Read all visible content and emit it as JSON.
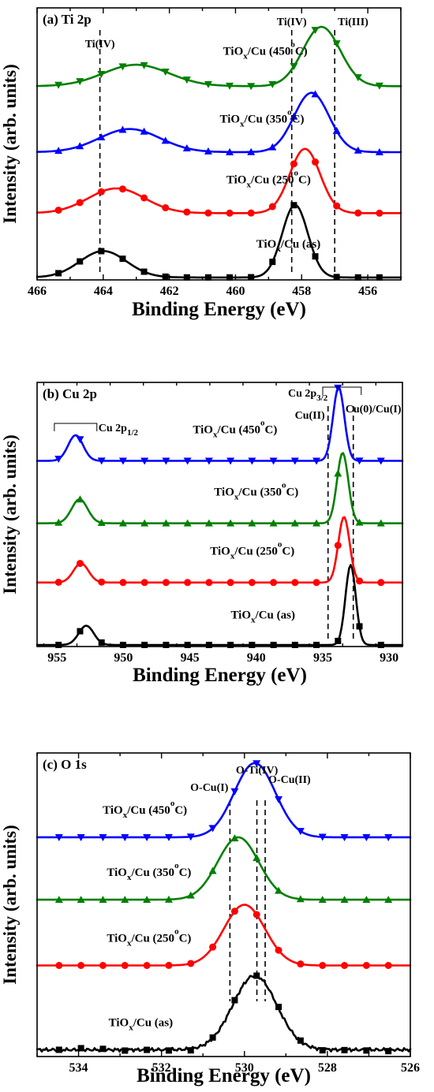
{
  "chart_data": [
    {
      "type": "line",
      "panel_label": "(a) Ti 2p",
      "xlabel": "Binding Energy (eV)",
      "ylabel": "Intensity (arb. units)",
      "xlim": [
        466,
        455
      ],
      "x_reversed": true,
      "xticks": [
        466,
        464,
        462,
        460,
        458,
        456
      ],
      "y_ticks_labeled": false,
      "series": [
        {
          "label": "TiO<sub>x</sub>/Cu (as)",
          "label_parts": [
            "TiO",
            "x",
            "/Cu (as)"
          ],
          "color": "#000000",
          "marker": "square",
          "offset": 0.0,
          "baseline": 0.03,
          "peaks": [
            [
              458.2,
              0.88,
              0.55
            ],
            [
              464.0,
              0.32,
              1.0
            ]
          ],
          "bg_slope": 0.0
        },
        {
          "label_parts": [
            "TiO",
            "x",
            "/Cu (250",
            "o",
            "C)"
          ],
          "color": "#ff0000",
          "marker": "circle",
          "offset": 0.78,
          "baseline": 0.03,
          "peaks": [
            [
              457.9,
              0.78,
              0.65
            ],
            [
              463.6,
              0.3,
              1.2
            ]
          ],
          "bg_slope": 0.0
        },
        {
          "label_parts": [
            "TiO",
            "x",
            "/Cu (350",
            "o",
            "C)"
          ],
          "color": "#0000ff",
          "marker": "triangle-up",
          "offset": 1.52,
          "baseline": 0.03,
          "peaks": [
            [
              457.7,
              0.72,
              0.75
            ],
            [
              463.2,
              0.28,
              1.3
            ]
          ],
          "bg_slope": 0.0
        },
        {
          "label_parts": [
            "TiO",
            "x",
            "/Cu (450",
            "o",
            "C)"
          ],
          "color": "#008000",
          "marker": "triangle-down",
          "offset": 2.32,
          "baseline": 0.03,
          "peaks": [
            [
              457.4,
              0.72,
              0.8
            ],
            [
              463.0,
              0.26,
              1.4
            ]
          ],
          "bg_slope": 0.0
        }
      ],
      "reference_lines": [
        {
          "x": 464.1,
          "label": "Ti(IV)"
        },
        {
          "x": 458.3,
          "label": "Ti(IV)"
        },
        {
          "x": 457.0,
          "label": "Ti(III)"
        }
      ]
    },
    {
      "type": "line",
      "panel_label": "(b) Cu 2p",
      "xlabel": "Binding Energy (eV)",
      "ylabel": "Intensity (arb. units)",
      "xlim": [
        956.5,
        929
      ],
      "x_reversed": true,
      "xticks": [
        955,
        950,
        945,
        940,
        935,
        930
      ],
      "y_ticks_labeled": false,
      "series": [
        {
          "label_parts": [
            "TiO",
            "x",
            "/Cu (as)"
          ],
          "color": "#000000",
          "marker": "square",
          "offset": 0.0,
          "baseline": 0.02,
          "peaks": [
            [
              932.9,
              1.0,
              0.55
            ],
            [
              952.8,
              0.24,
              0.8
            ]
          ],
          "bg_slope": 0.0
        },
        {
          "label_parts": [
            "TiO",
            "x",
            "/Cu (250",
            "o",
            "C)"
          ],
          "color": "#ff0000",
          "marker": "circle",
          "offset": 0.78,
          "baseline": 0.02,
          "peaks": [
            [
              933.4,
              0.82,
              0.6
            ],
            [
              953.2,
              0.24,
              0.8
            ]
          ],
          "bg_slope": 0.0
        },
        {
          "label_parts": [
            "TiO",
            "x",
            "/Cu (350",
            "o",
            "C)"
          ],
          "color": "#008000",
          "marker": "triangle-up",
          "offset": 1.52,
          "baseline": 0.02,
          "peaks": [
            [
              933.5,
              0.88,
              0.6
            ],
            [
              953.3,
              0.3,
              0.85
            ]
          ],
          "bg_slope": 0.0
        },
        {
          "label_parts": [
            "TiO",
            "x",
            "/Cu (450",
            "o",
            "C)"
          ],
          "color": "#0000ff",
          "marker": "triangle-down",
          "offset": 2.3,
          "baseline": 0.02,
          "peaks": [
            [
              933.8,
              0.92,
              0.6
            ],
            [
              953.6,
              0.32,
              0.8
            ]
          ],
          "bg_slope": 0.0
        }
      ],
      "reference_lines": [
        {
          "x": 934.6,
          "label": "Cu(II)"
        },
        {
          "x": 932.7,
          "label": "Cu(0)/Cu(I)"
        }
      ],
      "peak_groups": [
        {
          "label_parts": [
            "Cu 2p",
            "1/2"
          ],
          "x_from": 955.2,
          "x_to": 952.0
        },
        {
          "label_parts": [
            "Cu 2p",
            "3/2"
          ],
          "x_from": 935.0,
          "x_to": 932.1
        }
      ]
    },
    {
      "type": "line",
      "panel_label": "(c) O 1s",
      "xlabel": "Binding Energy (eV)",
      "ylabel": "Intensity (arb. units)",
      "xlim": [
        535,
        526
      ],
      "x_reversed": true,
      "xticks": [
        534,
        532,
        530,
        528,
        526
      ],
      "y_ticks_labeled": false,
      "series": [
        {
          "label_parts": [
            "TiO",
            "x",
            "/Cu (as)"
          ],
          "color": "#000000",
          "marker": "square",
          "offset": 0.0,
          "baseline": 0.03,
          "peaks": [
            [
              529.75,
              0.88,
              0.75
            ]
          ],
          "bg_slope": 0.0,
          "noise": true
        },
        {
          "label_parts": [
            "TiO",
            "x",
            "/Cu (250",
            "o",
            "C)"
          ],
          "color": "#ff0000",
          "marker": "circle",
          "offset": 1.0,
          "baseline": 0.03,
          "peaks": [
            [
              530.0,
              0.72,
              0.7
            ]
          ],
          "bg_slope": 0.0
        },
        {
          "label_parts": [
            "TiO",
            "x",
            "/Cu (350",
            "o",
            "C)"
          ],
          "color": "#008000",
          "marker": "triangle-up",
          "offset": 1.78,
          "baseline": 0.03,
          "peaks": [
            [
              530.15,
              0.74,
              0.7
            ]
          ],
          "bg_slope": 0.0
        },
        {
          "label_parts": [
            "TiO",
            "x",
            "/Cu (450",
            "o",
            "C)"
          ],
          "color": "#0000ff",
          "marker": "triangle-down",
          "offset": 2.52,
          "baseline": 0.03,
          "peaks": [
            [
              529.75,
              0.88,
              0.7
            ]
          ],
          "bg_slope": 0.0
        }
      ],
      "reference_lines": [
        {
          "x": 530.35,
          "label": "O-Cu(I)"
        },
        {
          "x": 529.7,
          "label": "O-Ti(IV)"
        },
        {
          "x": 529.5,
          "label": "O-Cu(II)"
        }
      ]
    }
  ]
}
